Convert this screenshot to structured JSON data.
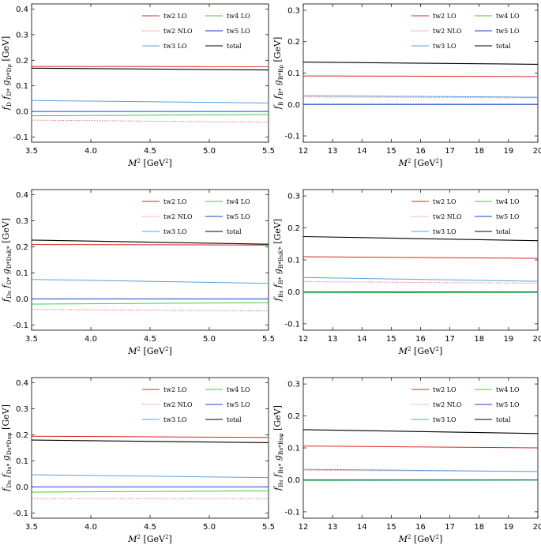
{
  "legend_colors": {
    "tw2 LO": "#d62728",
    "tw2 NLO": "#e8707a",
    "tw3 LO": "#5aa0dc",
    "tw4 LO": "#3ccb3c",
    "tw5 LO": "#1f3fd6",
    "total": "#000000"
  },
  "chart_data": [
    {
      "type": "line",
      "xlabel": "M² [GeV²]",
      "ylabel": "f_D f_D* g_D*Dρ [GeV]",
      "xlim": [
        3.5,
        5.5
      ],
      "ylim": [
        -0.12,
        0.42
      ],
      "xticks": [
        "3.5",
        "4.0",
        "4.5",
        "5.0",
        "5.5"
      ],
      "yticks": [
        "-0.1",
        "0.0",
        "0.1",
        "0.2",
        "0.3",
        "0.4"
      ],
      "grid": false,
      "legend": "top-right",
      "series": [
        {
          "name": "tw2 LO",
          "x": [
            3.5,
            5.5
          ],
          "y": [
            0.176,
            0.175
          ]
        },
        {
          "name": "tw2 NLO",
          "x": [
            3.5,
            5.5
          ],
          "y": [
            -0.034,
            -0.042
          ]
        },
        {
          "name": "tw3 LO",
          "x": [
            3.5,
            5.5
          ],
          "y": [
            0.043,
            0.033
          ]
        },
        {
          "name": "tw4 LO",
          "x": [
            3.5,
            5.5
          ],
          "y": [
            -0.017,
            -0.012
          ]
        },
        {
          "name": "tw5 LO",
          "x": [
            3.5,
            5.5
          ],
          "y": [
            0.0,
            0.0
          ]
        },
        {
          "name": "total",
          "x": [
            3.5,
            5.5
          ],
          "y": [
            0.169,
            0.162
          ]
        }
      ]
    },
    {
      "type": "line",
      "xlabel": "M² [GeV²]",
      "ylabel": "f_B f_B* g_B*Bρ [GeV]",
      "xlim": [
        12,
        20
      ],
      "ylim": [
        -0.12,
        0.32
      ],
      "xticks": [
        "12",
        "13",
        "14",
        "15",
        "16",
        "17",
        "18",
        "19",
        "20"
      ],
      "yticks": [
        "-0.1",
        "0.0",
        "0.1",
        "0.2",
        "0.3"
      ],
      "grid": false,
      "legend": "top-right",
      "series": [
        {
          "name": "tw2 LO",
          "x": [
            12,
            20
          ],
          "y": [
            0.091,
            0.089
          ]
        },
        {
          "name": "tw2 NLO",
          "x": [
            12,
            20
          ],
          "y": [
            0.024,
            0.021
          ]
        },
        {
          "name": "tw3 LO",
          "x": [
            12,
            20
          ],
          "y": [
            0.028,
            0.023
          ]
        },
        {
          "name": "tw4 LO",
          "x": [
            12,
            20
          ],
          "y": [
            0.001,
            0.001
          ]
        },
        {
          "name": "tw5 LO",
          "x": [
            12,
            20
          ],
          "y": [
            0.0,
            0.0
          ]
        },
        {
          "name": "total",
          "x": [
            12,
            20
          ],
          "y": [
            0.135,
            0.128
          ]
        }
      ]
    },
    {
      "type": "line",
      "xlabel": "M² [GeV²]",
      "ylabel": "f_Ds f_D* g_D*DsK* [GeV]",
      "xlim": [
        3.5,
        5.5
      ],
      "ylim": [
        -0.12,
        0.42
      ],
      "xticks": [
        "3.5",
        "4.0",
        "4.5",
        "5.0",
        "5.5"
      ],
      "yticks": [
        "-0.1",
        "0.0",
        "0.1",
        "0.2",
        "0.3",
        "0.4"
      ],
      "grid": false,
      "legend": "top-right",
      "series": [
        {
          "name": "tw2 LO",
          "x": [
            3.5,
            5.5
          ],
          "y": [
            0.209,
            0.207
          ]
        },
        {
          "name": "tw2 NLO",
          "x": [
            3.5,
            5.5
          ],
          "y": [
            -0.04,
            -0.046
          ]
        },
        {
          "name": "tw3 LO",
          "x": [
            3.5,
            5.5
          ],
          "y": [
            0.075,
            0.06
          ]
        },
        {
          "name": "tw4 LO",
          "x": [
            3.5,
            5.5
          ],
          "y": [
            -0.02,
            -0.014
          ]
        },
        {
          "name": "tw5 LO",
          "x": [
            3.5,
            5.5
          ],
          "y": [
            0.0,
            0.0
          ]
        },
        {
          "name": "total",
          "x": [
            3.5,
            5.5
          ],
          "y": [
            0.226,
            0.21
          ]
        }
      ]
    },
    {
      "type": "line",
      "xlabel": "M² [GeV²]",
      "ylabel": "f_Bs f_B* g_B*BsK* [GeV]",
      "xlim": [
        12,
        20
      ],
      "ylim": [
        -0.12,
        0.32
      ],
      "xticks": [
        "12",
        "13",
        "14",
        "15",
        "16",
        "17",
        "18",
        "19",
        "20"
      ],
      "yticks": [
        "-0.1",
        "0.0",
        "0.1",
        "0.2",
        "0.3"
      ],
      "grid": false,
      "legend": "top-right",
      "series": [
        {
          "name": "tw2 LO",
          "x": [
            12,
            20
          ],
          "y": [
            0.11,
            0.105
          ]
        },
        {
          "name": "tw2 NLO",
          "x": [
            12,
            20
          ],
          "y": [
            0.032,
            0.027
          ]
        },
        {
          "name": "tw3 LO",
          "x": [
            12,
            20
          ],
          "y": [
            0.045,
            0.033
          ]
        },
        {
          "name": "tw4 LO",
          "x": [
            12,
            20
          ],
          "y": [
            -0.003,
            -0.002
          ]
        },
        {
          "name": "tw5 LO",
          "x": [
            12,
            20
          ],
          "y": [
            0.0,
            0.0
          ]
        },
        {
          "name": "total",
          "x": [
            12,
            20
          ],
          "y": [
            0.173,
            0.16
          ]
        }
      ]
    },
    {
      "type": "line",
      "xlabel": "M² [GeV²]",
      "ylabel": "f_Ds f_Ds* g_Ds*Dsφ [GeV]",
      "xlim": [
        3.5,
        5.5
      ],
      "ylim": [
        -0.12,
        0.42
      ],
      "xticks": [
        "3.5",
        "4.0",
        "4.5",
        "5.0",
        "5.5"
      ],
      "yticks": [
        "-0.1",
        "0.0",
        "0.1",
        "0.2",
        "0.3",
        "0.4"
      ],
      "grid": false,
      "legend": "top-right",
      "series": [
        {
          "name": "tw2 LO",
          "x": [
            3.5,
            5.5
          ],
          "y": [
            0.195,
            0.19
          ]
        },
        {
          "name": "tw2 NLO",
          "x": [
            3.5,
            5.5
          ],
          "y": [
            -0.045,
            -0.045
          ]
        },
        {
          "name": "tw3 LO",
          "x": [
            3.5,
            5.5
          ],
          "y": [
            0.047,
            0.036
          ]
        },
        {
          "name": "tw4 LO",
          "x": [
            3.5,
            5.5
          ],
          "y": [
            -0.02,
            -0.015
          ]
        },
        {
          "name": "tw5 LO",
          "x": [
            3.5,
            5.5
          ],
          "y": [
            0.0,
            0.0
          ]
        },
        {
          "name": "total",
          "x": [
            3.5,
            5.5
          ],
          "y": [
            0.18,
            0.17
          ]
        }
      ]
    },
    {
      "type": "line",
      "xlabel": "M² [GeV²]",
      "ylabel": "f_Bs f_Bs* g_Bs*Bsφ [GeV]",
      "xlim": [
        12,
        20
      ],
      "ylim": [
        -0.12,
        0.32
      ],
      "xticks": [
        "12",
        "13",
        "14",
        "15",
        "16",
        "17",
        "18",
        "19",
        "20"
      ],
      "yticks": [
        "-0.1",
        "0.0",
        "0.1",
        "0.2",
        "0.3"
      ],
      "grid": false,
      "legend": "top-right",
      "series": [
        {
          "name": "tw2 LO",
          "x": [
            12,
            20
          ],
          "y": [
            0.106,
            0.1
          ]
        },
        {
          "name": "tw2 NLO",
          "x": [
            12,
            20
          ],
          "y": [
            0.03,
            0.026
          ]
        },
        {
          "name": "tw3 LO",
          "x": [
            12,
            20
          ],
          "y": [
            0.033,
            0.026
          ]
        },
        {
          "name": "tw4 LO",
          "x": [
            12,
            20
          ],
          "y": [
            -0.002,
            -0.001
          ]
        },
        {
          "name": "tw5 LO",
          "x": [
            12,
            20
          ],
          "y": [
            0.0,
            0.0
          ]
        },
        {
          "name": "total",
          "x": [
            12,
            20
          ],
          "y": [
            0.157,
            0.145
          ]
        }
      ]
    }
  ]
}
